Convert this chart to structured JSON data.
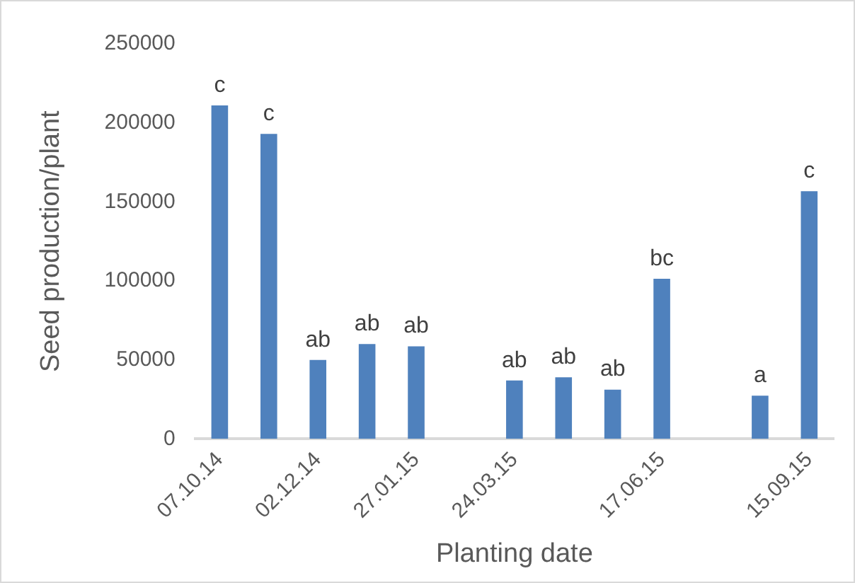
{
  "chart_data": {
    "type": "bar",
    "xlabel": "Planting date",
    "ylabel": "Seed production/plant",
    "categories": [
      "07.10.14",
      null,
      "02.12.14",
      null,
      "27.01.15",
      null,
      "24.03.15",
      null,
      null,
      "17.06.15",
      null,
      null,
      "15.09.15"
    ],
    "values": [
      211000,
      193000,
      50000,
      60000,
      58600,
      null,
      37000,
      39000,
      31200,
      101400,
      null,
      27400,
      156800
    ],
    "value_labels": [
      "c",
      "c",
      "ab",
      "ab",
      "ab",
      null,
      "ab",
      "ab",
      "ab",
      "bc",
      null,
      "a",
      "c"
    ],
    "color": "#4f81bd",
    "ylim": [
      0,
      250000
    ],
    "yticks": [
      0,
      50000,
      100000,
      150000,
      200000,
      250000
    ],
    "grid": false,
    "legend": false
  }
}
